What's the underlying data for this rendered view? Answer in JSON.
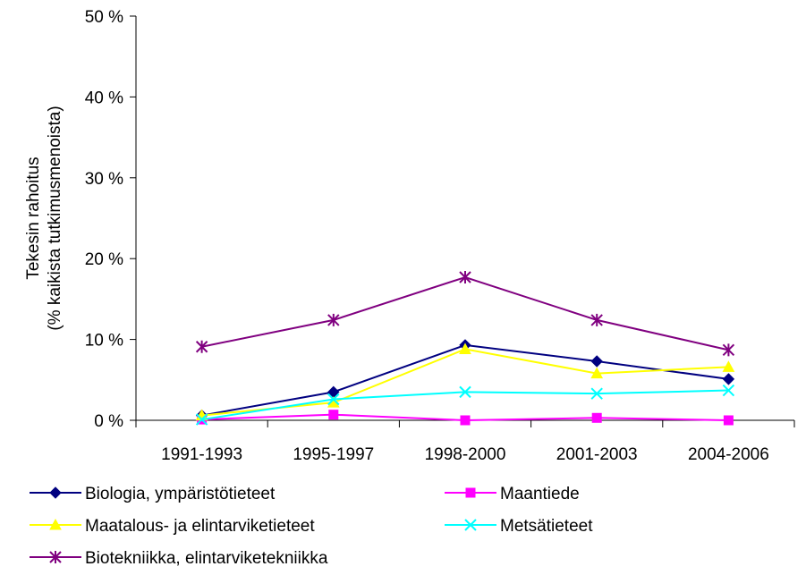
{
  "chart_data": {
    "type": "line",
    "title": "",
    "xlabel": "",
    "ylabel_lines": [
      "Tekesin rahoitus",
      "(% kaikista tutkimusmenoista)"
    ],
    "categories": [
      "1991-1993",
      "1995-1997",
      "1998-2000",
      "2001-2003",
      "2004-2006"
    ],
    "ylim": [
      0,
      50
    ],
    "yticks": [
      0,
      10,
      20,
      30,
      40,
      50
    ],
    "ytick_labels": [
      "0 %",
      "10 %",
      "20 %",
      "30 %",
      "40 %",
      "50 %"
    ],
    "grid": false,
    "legend_position": "bottom",
    "series": [
      {
        "name": "Biologia, ympäristötieteet",
        "color": "#000080",
        "marker": "diamond",
        "values": [
          0.6,
          3.5,
          9.3,
          7.3,
          5.1
        ]
      },
      {
        "name": "Maantiede",
        "color": "#ff00ff",
        "marker": "square",
        "values": [
          0.1,
          0.7,
          0.0,
          0.3,
          0.0
        ]
      },
      {
        "name": "Maatalous- ja elintarviketieteet",
        "color": "#ffff00",
        "marker": "triangle",
        "values": [
          0.6,
          2.2,
          8.8,
          5.8,
          6.6
        ]
      },
      {
        "name": "Metsätieteet",
        "color": "#00ffff",
        "marker": "x",
        "values": [
          0.1,
          2.6,
          3.5,
          3.3,
          3.7
        ]
      },
      {
        "name": "Biotekniikka, elintarviketekniikka",
        "color": "#800080",
        "marker": "star",
        "values": [
          9.1,
          12.4,
          17.7,
          12.4,
          8.7
        ]
      }
    ]
  }
}
